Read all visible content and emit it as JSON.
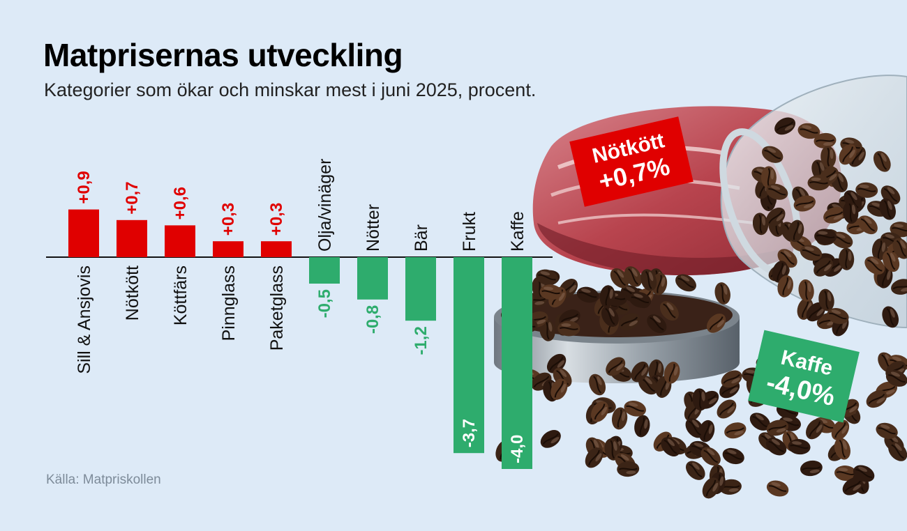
{
  "title": "Matprisernas utveckling",
  "subtitle": "Kategorier som ökar och minskar mest i juni 2025, procent.",
  "source": "Källa: Matpriskollen",
  "colors": {
    "positive": "#e00000",
    "negative": "#2eac6d",
    "background": "#ddeaf7"
  },
  "chart_data": {
    "type": "bar",
    "categories": [
      "Sill & Ansjovis",
      "Nötkött",
      "Köttfärs",
      "Pinnglass",
      "Paketglass",
      "Olja/vinäger",
      "Nötter",
      "Bär",
      "Frukt",
      "Kaffe"
    ],
    "values": [
      0.9,
      0.7,
      0.6,
      0.3,
      0.3,
      -0.5,
      -0.8,
      -1.2,
      -3.7,
      -4.0
    ],
    "value_labels": [
      "+0,9",
      "+0,7",
      "+0,6",
      "+0,3",
      "+0,3",
      "-0,5",
      "-0,8",
      "-1,2",
      "-3,7",
      "-4,0"
    ],
    "title": "Matprisernas utveckling",
    "subtitle": "Kategorier som ökar och minskar mest i juni 2025, procent.",
    "grid": false,
    "legend": "none"
  },
  "callouts": [
    {
      "name": "Nötkött",
      "value": "+0,7%",
      "color": "#e00000"
    },
    {
      "name": "Kaffe",
      "value": "-4,0%",
      "color": "#2eac6d"
    }
  ],
  "illustration": {
    "description_icon": "meat-and-coffee-beans-photo"
  }
}
